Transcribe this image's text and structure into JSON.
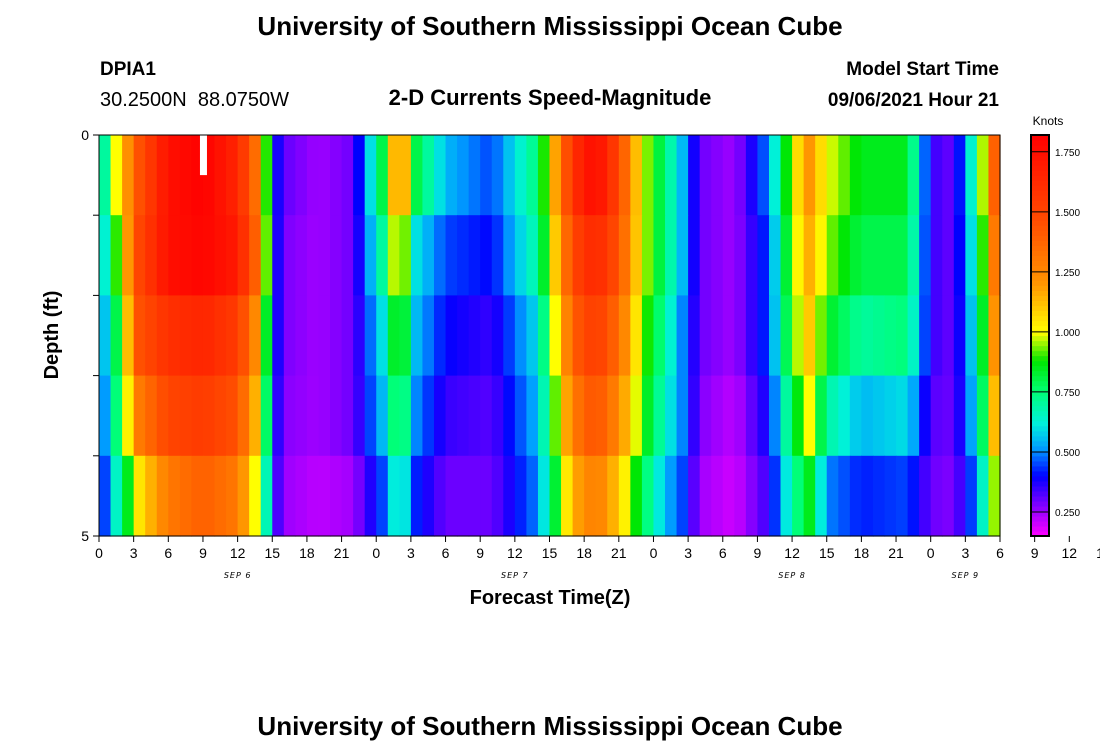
{
  "header": {
    "title": "University of Southern Mississippi Ocean Cube",
    "station_id": "DPIA1",
    "station_coords": "30.2500N  88.0750W",
    "subtitle": "2-D Currents Speed-Magnitude",
    "model_start_label": "Model Start Time",
    "model_start_value": "09/06/2021 Hour 21"
  },
  "footer": {
    "title": "University of Southern Mississippi Ocean Cube"
  },
  "chart_data": {
    "type": "heatmap",
    "xlabel": "Forecast Time(Z)",
    "ylabel": "Depth (ft)",
    "colorbar_label": "Knots",
    "ylim": [
      0,
      5
    ],
    "y_tick_labels": [
      "0",
      "5"
    ],
    "x_tick_labels": [
      "0",
      "3",
      "6",
      "9",
      "12",
      "15",
      "18",
      "21",
      "0",
      "3",
      "6",
      "9",
      "12",
      "15",
      "18",
      "21",
      "0",
      "3",
      "6",
      "9",
      "12",
      "15",
      "18",
      "21",
      "0",
      "3",
      "6",
      "9",
      "12",
      "15",
      "18",
      "21",
      "0",
      "3",
      "6"
    ],
    "date_labels": [
      "SEP 6",
      "SEP 7",
      "SEP 8",
      "SEP 9"
    ],
    "date_label_hours": [
      12,
      36,
      60,
      75
    ],
    "x_range_hours": [
      0,
      78
    ],
    "colorbar_range": [
      0.15,
      1.82
    ],
    "colorbar_ticks": [
      "0.250",
      "0.500",
      "0.750",
      "1.000",
      "1.250",
      "1.500",
      "1.750"
    ],
    "colorbar_tick_values": [
      0.25,
      0.5,
      0.75,
      1.0,
      1.25,
      1.5,
      1.75
    ],
    "depth_layers": [
      0.5,
      1.5,
      2.5,
      3.5,
      4.5
    ],
    "time_keys_hours": [
      0,
      1.5,
      3.5,
      6,
      9,
      12,
      14,
      15.2,
      16.5,
      19,
      22,
      24.5,
      26,
      27.5,
      30,
      34,
      38,
      41,
      43,
      45,
      47,
      49,
      50.5,
      52,
      55,
      58,
      60,
      61.5,
      63,
      66,
      70,
      72,
      74,
      76,
      78
    ],
    "speed_rows": [
      [
        0.55,
        1.0,
        1.45,
        1.75,
        1.82,
        1.65,
        1.25,
        0.4,
        0.3,
        0.25,
        0.3,
        0.8,
        1.3,
        0.8,
        0.55,
        0.45,
        0.75,
        1.6,
        1.78,
        1.5,
        1.0,
        0.75,
        0.55,
        0.3,
        0.25,
        0.5,
        1.0,
        1.2,
        1.0,
        0.85,
        0.85,
        0.35,
        0.3,
        0.75,
        1.6
      ],
      [
        0.5,
        0.9,
        1.5,
        1.75,
        1.8,
        1.7,
        1.3,
        0.4,
        0.28,
        0.25,
        0.3,
        0.7,
        1.1,
        0.6,
        0.45,
        0.4,
        0.7,
        1.5,
        1.65,
        1.45,
        1.0,
        0.75,
        0.55,
        0.3,
        0.25,
        0.45,
        0.95,
        1.15,
        0.95,
        0.8,
        0.8,
        0.35,
        0.3,
        0.7,
        1.5
      ],
      [
        0.45,
        0.8,
        1.45,
        1.6,
        1.65,
        1.55,
        1.15,
        0.4,
        0.28,
        0.25,
        0.3,
        0.6,
        0.95,
        0.55,
        0.4,
        0.35,
        0.6,
        1.4,
        1.55,
        1.35,
        0.95,
        0.7,
        0.5,
        0.3,
        0.25,
        0.45,
        0.9,
        1.1,
        0.85,
        0.7,
        0.75,
        0.35,
        0.3,
        0.65,
        1.4
      ],
      [
        0.4,
        0.75,
        1.3,
        1.5,
        1.55,
        1.45,
        1.05,
        0.38,
        0.27,
        0.25,
        0.3,
        0.55,
        0.85,
        0.5,
        0.35,
        0.32,
        0.55,
        1.3,
        1.45,
        1.25,
        0.9,
        0.65,
        0.5,
        0.28,
        0.22,
        0.4,
        0.8,
        1.0,
        0.7,
        0.55,
        0.6,
        0.32,
        0.3,
        0.6,
        1.3
      ],
      [
        0.35,
        0.65,
        1.05,
        1.3,
        1.4,
        1.3,
        0.9,
        0.35,
        0.25,
        0.22,
        0.25,
        0.45,
        0.7,
        0.42,
        0.3,
        0.3,
        0.5,
        1.15,
        1.3,
        1.1,
        0.8,
        0.55,
        0.45,
        0.25,
        0.2,
        0.35,
        0.7,
        0.85,
        0.5,
        0.42,
        0.45,
        0.3,
        0.28,
        0.5,
        1.1
      ]
    ],
    "missing_marker": {
      "hour": 9,
      "depth_from": 0,
      "depth_to": 0.5
    }
  }
}
